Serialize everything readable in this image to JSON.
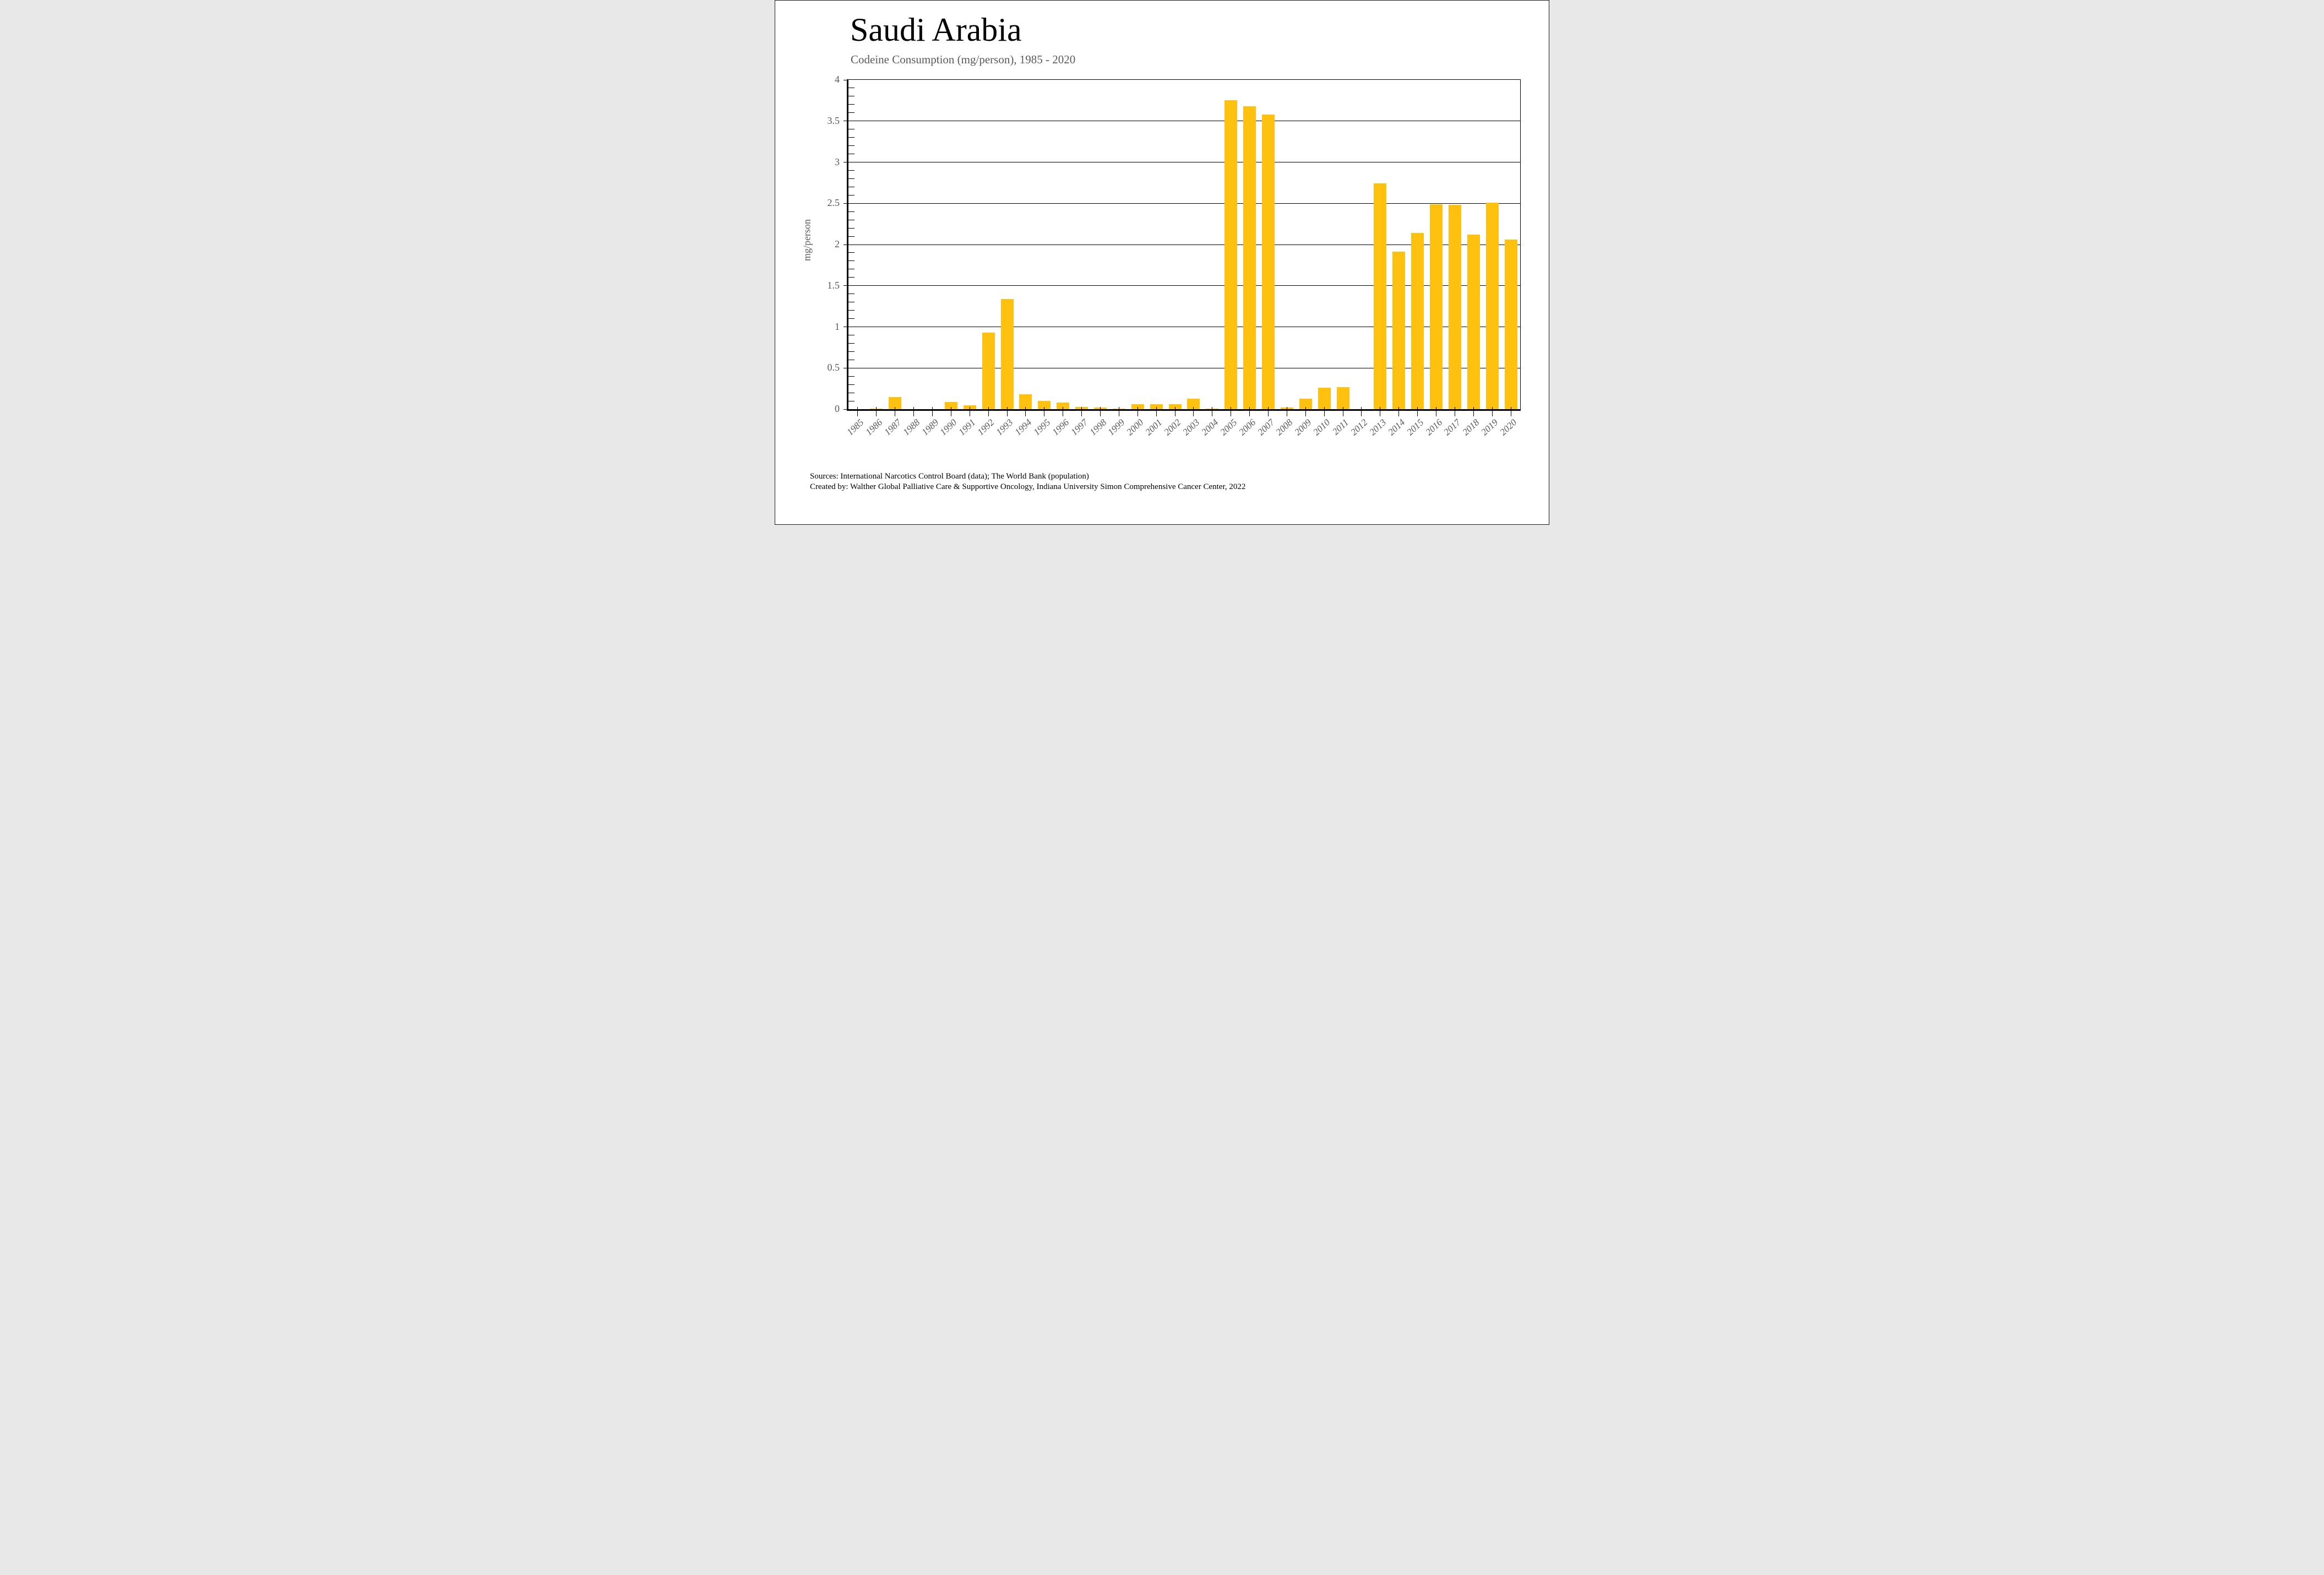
{
  "header": {
    "title": "Saudi Arabia",
    "subtitle": "Codeine Consumption (mg/person), 1985 - 2020"
  },
  "footer": {
    "line1": "Sources: International Narcotics Control Board (data); The World Bank (population)",
    "line2": "Created by: Walther Global Palliative Care & Supportive Oncology, Indiana University Simon Comprehensive Cancer Center, 2022"
  },
  "colors": {
    "bar": "#ffc110",
    "axis_text": "#595959",
    "title_text": "#000000",
    "gridline": "#000000"
  },
  "chart_data": {
    "type": "bar",
    "title": "Saudi Arabia",
    "subtitle": "Codeine Consumption (mg/person), 1985 - 2020",
    "xlabel": "",
    "ylabel": "mg/person",
    "ylim": [
      0,
      4
    ],
    "ytick_step": 0.5,
    "minor_tick_step": 0.1,
    "grid": "horizontal",
    "legend": "none",
    "ytick_labels": [
      "0",
      "0.5",
      "1",
      "1.5",
      "2",
      "2.5",
      "3",
      "3.5",
      "4"
    ],
    "categories": [
      1985,
      1986,
      1987,
      1988,
      1989,
      1990,
      1991,
      1992,
      1993,
      1994,
      1995,
      1996,
      1997,
      1998,
      1999,
      2000,
      2001,
      2002,
      2003,
      2004,
      2005,
      2006,
      2007,
      2008,
      2009,
      2010,
      2011,
      2012,
      2013,
      2014,
      2015,
      2016,
      2017,
      2018,
      2019,
      2020
    ],
    "values": [
      0,
      0.01,
      0.15,
      0,
      0,
      0.09,
      0.05,
      0.93,
      1.34,
      0.18,
      0.1,
      0.08,
      0.03,
      0.02,
      0.01,
      0.06,
      0.06,
      0.06,
      0.13,
      0.01,
      3.75,
      3.68,
      3.58,
      0.02,
      0.13,
      0.26,
      0.27,
      0,
      2.74,
      1.91,
      2.14,
      2.49,
      2.48,
      2.12,
      2.51,
      2.06
    ]
  }
}
